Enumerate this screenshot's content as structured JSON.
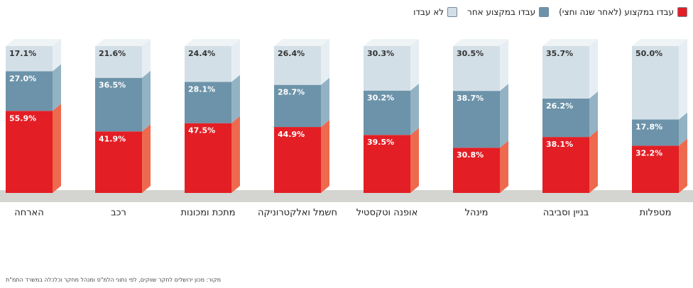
{
  "chart_data": {
    "type": "stacked-bar",
    "categories": [
      "הארחה",
      "רכב",
      "מתכת ומכונות",
      "חשמל ואלקטרוניקה",
      "אופנה וטקסטיל",
      "מינהל",
      "בניין וסביבה",
      "מטפלות"
    ],
    "series": [
      {
        "name": "עבדו במקצוע (לאחר שנה וחצי)",
        "color": "#e31e25",
        "side_color": "#ee6a4e",
        "values": [
          55.9,
          41.9,
          47.5,
          44.9,
          39.5,
          30.8,
          38.1,
          32.2
        ],
        "value_labels": [
          "55.9%",
          "41.9%",
          "47.5%",
          "44.9%",
          "39.5%",
          "30.8%",
          "38.1%",
          "32.2%"
        ]
      },
      {
        "name": "עבדו במקצוע אחר",
        "color": "#6c93a9",
        "side_color": "#93b3c4",
        "values": [
          27.0,
          36.5,
          28.1,
          28.7,
          30.2,
          38.7,
          26.2,
          17.8
        ],
        "value_labels": [
          "27.0%",
          "36.5%",
          "28.1%",
          "28.7%",
          "30.2%",
          "38.7%",
          "26.2%",
          "17.8%"
        ]
      },
      {
        "name": "לא עבדו",
        "color": "#d3dfe7",
        "side_color": "#e6eef3",
        "values": [
          17.1,
          21.6,
          24.4,
          26.4,
          30.3,
          30.5,
          35.7,
          50.0
        ],
        "value_labels": [
          "17.1%",
          "21.6%",
          "24.4%",
          "26.4%",
          "30.3%",
          "30.5%",
          "35.7%",
          "50.0%"
        ]
      }
    ],
    "source": "מקור: מכון ירושלים לחקר שווקים, לפי נתוני הלמ\"ס ומנהל מחקר וכלכלה במשרד התמ\"ת"
  }
}
